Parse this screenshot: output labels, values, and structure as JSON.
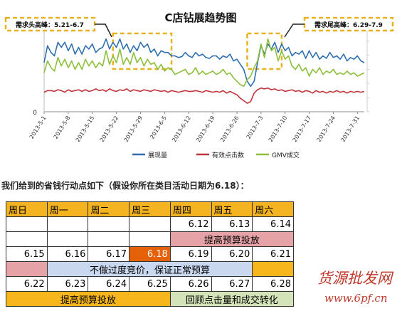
{
  "chart": {
    "title": "C店钻展趋势图",
    "ylim": [
      0,
      1
    ],
    "y_tick_label": "0",
    "annotations": [
      {
        "text": "需求头高峰：5.21-6.7"
      },
      {
        "text": "需求尾高峰：6.29-7.9"
      }
    ],
    "colors": {
      "series1": "#2f6fb0",
      "series2": "#c0343a",
      "series3": "#8cbf3a",
      "highlight": "#e7b21f"
    }
  },
  "chart_data": {
    "type": "line",
    "title": "C店钻展趋势图",
    "x_start": "2013-5-1",
    "x_end": "2013-8-2",
    "xticks": [
      "2013-5-1",
      "2013-5-8",
      "2013-5-15",
      "2013-5-22",
      "2013-5-29",
      "2013-6-5",
      "2013-6-12",
      "2013-6-19",
      "2013-6-26",
      "2013-7-3",
      "2013-7-10",
      "2013-7-17",
      "2013-7-24",
      "2013-7-31"
    ],
    "highlight_ranges": [
      {
        "from": "2013-5-21",
        "to": "2013-6-7"
      },
      {
        "from": "2013-6-29",
        "to": "2013-7-9"
      }
    ],
    "series": [
      {
        "name": "展现量",
        "values": [
          0.58,
          0.78,
          0.7,
          0.66,
          0.82,
          0.76,
          0.82,
          0.72,
          0.8,
          0.68,
          0.76,
          0.68,
          0.78,
          0.74,
          0.8,
          0.7,
          0.74,
          0.76,
          0.86,
          0.74,
          0.82,
          0.76,
          0.86,
          0.74,
          0.8,
          0.7,
          0.78,
          0.72,
          0.82,
          0.76,
          0.8,
          0.7,
          0.74,
          0.66,
          0.72,
          0.7,
          0.7,
          0.66,
          0.66,
          0.64,
          0.65,
          0.7,
          0.66,
          0.64,
          0.7,
          0.66,
          0.68,
          0.64,
          0.63,
          0.66,
          0.66,
          0.62,
          0.66,
          0.64,
          0.68,
          0.6,
          0.62,
          0.56,
          0.5,
          0.36,
          0.3,
          0.36,
          0.58,
          0.78,
          0.68,
          0.8,
          0.74,
          0.82,
          0.7,
          0.8,
          0.72,
          0.76,
          0.66,
          0.7,
          0.68,
          0.72,
          0.63,
          0.72,
          0.64,
          0.7,
          0.62,
          0.66,
          0.63,
          0.7,
          0.64,
          0.66,
          0.62,
          0.68,
          0.6,
          0.64,
          0.62,
          0.66,
          0.6,
          0.58
        ]
      },
      {
        "name": "有效点击数",
        "values": [
          0.23,
          0.25,
          0.25,
          0.24,
          0.26,
          0.25,
          0.23,
          0.26,
          0.24,
          0.25,
          0.26,
          0.24,
          0.26,
          0.24,
          0.25,
          0.27,
          0.25,
          0.26,
          0.24,
          0.27,
          0.25,
          0.24,
          0.26,
          0.25,
          0.27,
          0.24,
          0.26,
          0.25,
          0.24,
          0.26,
          0.25,
          0.24,
          0.26,
          0.25,
          0.24,
          0.25,
          0.23,
          0.25,
          0.24,
          0.23,
          0.24,
          0.25,
          0.24,
          0.24,
          0.25,
          0.24,
          0.23,
          0.25,
          0.24,
          0.23,
          0.24,
          0.23,
          0.25,
          0.22,
          0.24,
          0.22,
          0.2,
          0.16,
          0.13,
          0.1,
          0.12,
          0.22,
          0.26,
          0.28,
          0.27,
          0.28,
          0.26,
          0.27,
          0.25,
          0.26,
          0.24,
          0.25,
          0.26,
          0.24,
          0.25,
          0.23,
          0.25,
          0.24,
          0.22,
          0.25,
          0.23,
          0.24,
          0.22,
          0.24,
          0.23,
          0.25,
          0.23,
          0.24,
          0.22,
          0.24,
          0.23,
          0.24,
          0.23,
          0.24
        ]
      },
      {
        "name": "GMV成交",
        "values": [
          0.46,
          0.6,
          0.52,
          0.48,
          0.64,
          0.54,
          0.62,
          0.52,
          0.6,
          0.5,
          0.58,
          0.5,
          0.62,
          0.54,
          0.6,
          0.52,
          0.58,
          0.54,
          0.72,
          0.56,
          0.66,
          0.58,
          0.74,
          0.56,
          0.64,
          0.56,
          0.7,
          0.58,
          0.64,
          0.54,
          0.62,
          0.56,
          0.58,
          0.5,
          0.56,
          0.48,
          0.52,
          0.5,
          0.44,
          0.46,
          0.48,
          0.5,
          0.44,
          0.46,
          0.52,
          0.44,
          0.48,
          0.44,
          0.46,
          0.48,
          0.44,
          0.46,
          0.5,
          0.44,
          0.46,
          0.4,
          0.36,
          0.32,
          0.3,
          0.38,
          0.42,
          0.52,
          0.6,
          0.8,
          0.64,
          0.86,
          0.72,
          0.76,
          0.6,
          0.72,
          0.62,
          0.66,
          0.54,
          0.5,
          0.56,
          0.48,
          0.52,
          0.42,
          0.5,
          0.46,
          0.52,
          0.44,
          0.48,
          0.46,
          0.5,
          0.44,
          0.46,
          0.44,
          0.48,
          0.44,
          0.46,
          0.42,
          0.44,
          0.46
        ]
      }
    ]
  },
  "note": "我们给到的省钱行动点如下（假设你所在类目活动日期为6.18）：",
  "table": {
    "headers": [
      "周日",
      "周一",
      "周二",
      "周三",
      "周四",
      "周五",
      "周六"
    ],
    "row1": {
      "d12": "6.12",
      "d13": "6.13",
      "d14": "6.14"
    },
    "row1_band": "提高预算投放",
    "row2": [
      "6.15",
      "6.16",
      "6.17",
      "6.18",
      "6.19",
      "6.20",
      "6.21"
    ],
    "row2_band": "不做过度竞价，保证正常预算",
    "row3": [
      "6.22",
      "6.23",
      "6.24",
      "6.25",
      "6.26",
      "6.27",
      "6.28"
    ],
    "row3_band_left": "提高预算投放",
    "row3_band_right": "回顾点击量和成交转化"
  },
  "watermark": {
    "name": "货源批发网",
    "url": "www.6pf.cn",
    "color": "#c0392b"
  }
}
